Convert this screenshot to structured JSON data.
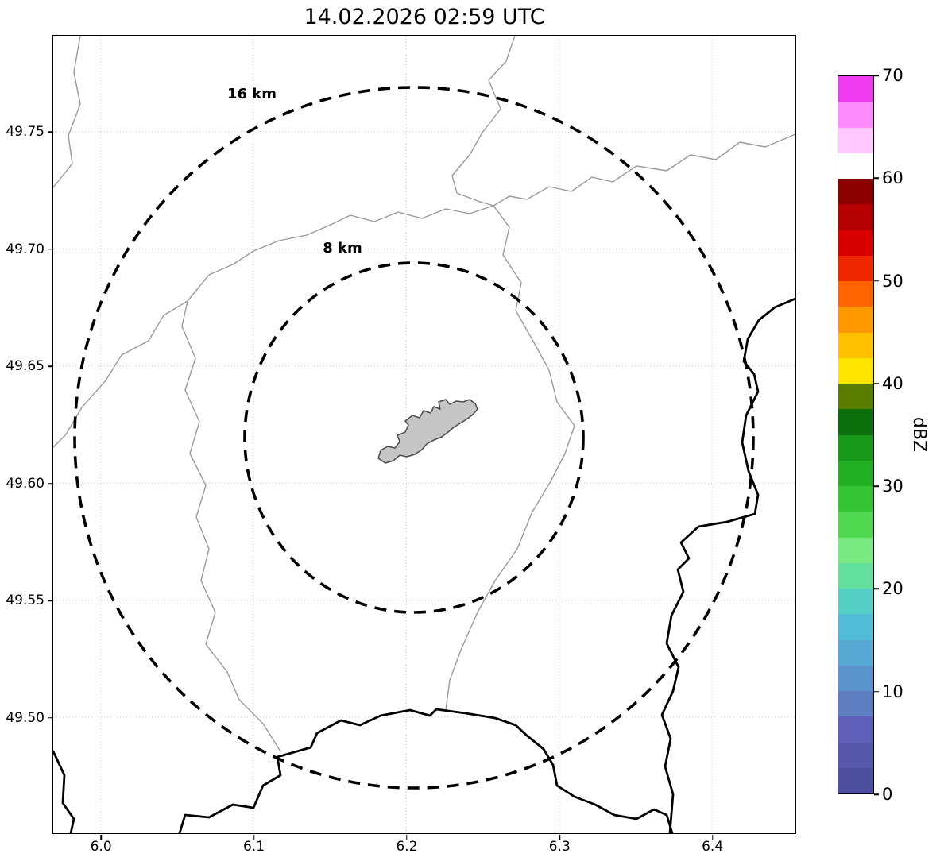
{
  "title": "14.02.2026 02:59 UTC",
  "map": {
    "rings": [
      {
        "label": "16 km",
        "radius_km": 16
      },
      {
        "label": "8 km",
        "radius_km": 8
      }
    ],
    "radar_echoes": []
  },
  "axes": {
    "x": {
      "min": 5.969,
      "max": 6.4545,
      "ticks": [
        6.0,
        6.1,
        6.2,
        6.3,
        6.4
      ],
      "labels": [
        "6.0",
        "6.1",
        "6.2",
        "6.3",
        "6.4"
      ]
    },
    "y": {
      "min": 49.4505,
      "max": 49.791,
      "ticks": [
        49.75,
        49.7,
        49.65,
        49.6,
        49.55,
        49.5
      ],
      "labels": [
        "49.75",
        "49.70",
        "49.65",
        "49.60",
        "49.55",
        "49.50"
      ]
    }
  },
  "colorbar": {
    "label": "dBZ",
    "min": 0,
    "max": 70,
    "ticks": [
      0,
      10,
      20,
      30,
      40,
      50,
      60,
      70
    ],
    "colors": [
      "#4e4e9e",
      "#5757ac",
      "#6060ba",
      "#5f7ec2",
      "#5b94cc",
      "#57a8d2",
      "#52bcd8",
      "#55cfc3",
      "#63df9e",
      "#79ea82",
      "#50d850",
      "#34c434",
      "#22ae22",
      "#189818",
      "#0a6e0a",
      "#5a7d00",
      "#ffe400",
      "#ffc000",
      "#ff9800",
      "#ff6400",
      "#f02800",
      "#d80000",
      "#b40000",
      "#8c0000",
      "#ffffff",
      "#ffc8ff",
      "#ff8cff",
      "#f03cf0"
    ]
  }
}
